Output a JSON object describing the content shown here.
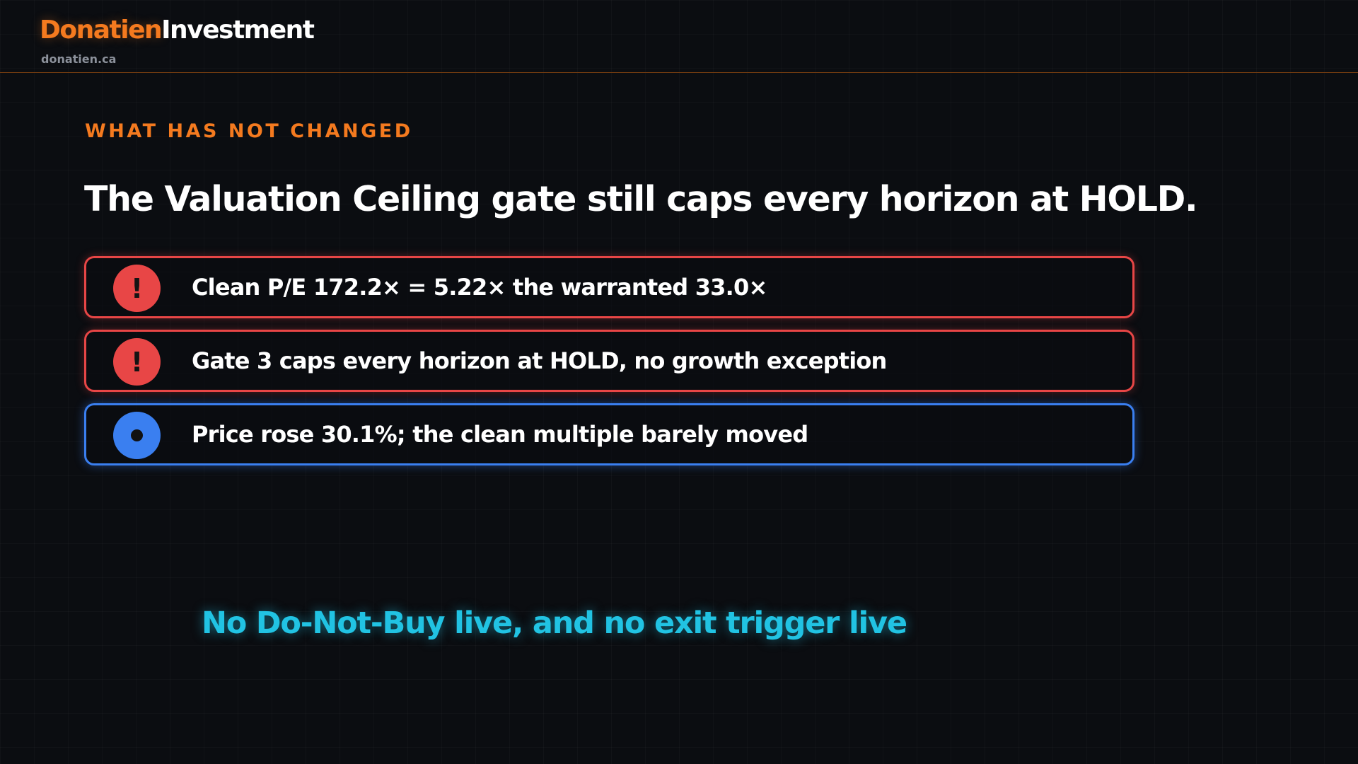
{
  "brand": {
    "name_part1": "Donatien",
    "name_part2": "Investment",
    "domain": "donatien.ca"
  },
  "slide": {
    "eyebrow": "WHAT HAS NOT CHANGED",
    "headline": "The Valuation Ceiling gate still caps every horizon at HOLD.",
    "items": [
      {
        "status": "warning",
        "icon": "exclamation-icon",
        "text": "Clean P/E 172.2× = 5.22× the warranted 33.0×"
      },
      {
        "status": "warning",
        "icon": "exclamation-icon",
        "text": "Gate 3 caps every horizon at HOLD, no growth exception"
      },
      {
        "status": "info",
        "icon": "dot-icon",
        "text": "Price rose 30.1%; the clean multiple barely moved"
      }
    ],
    "footer_note": "No Do-Not-Buy live, and no exit trigger live"
  },
  "colors": {
    "accent_orange": "#f47a1f",
    "warning_red": "#e84646",
    "info_blue": "#3a7ff0",
    "highlight_cyan": "#21c3e3",
    "background": "#0b0d11"
  }
}
